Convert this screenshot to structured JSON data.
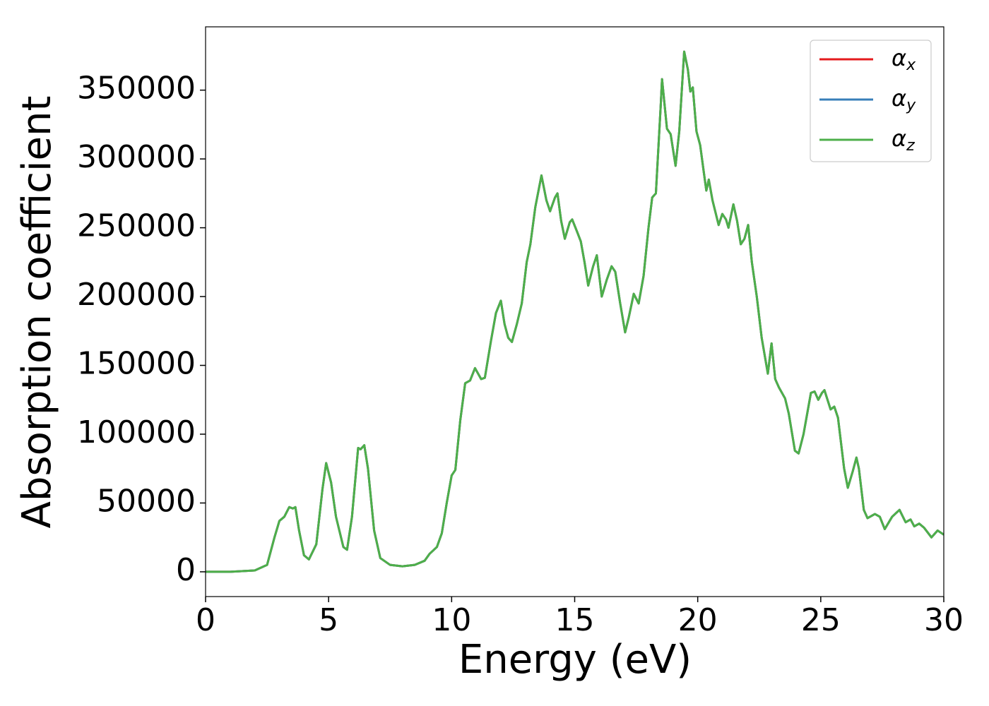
{
  "chart_data": {
    "type": "line",
    "xlabel": "Energy (eV)",
    "ylabel": "Absorption coefficient",
    "x": [
      0,
      1,
      2,
      2.5,
      2.8,
      3,
      3.2,
      3.4,
      3.55,
      3.65,
      3.8,
      4,
      4.2,
      4.5,
      4.75,
      4.9,
      5.1,
      5.3,
      5.6,
      5.75,
      5.95,
      6.2,
      6.3,
      6.45,
      6.6,
      6.85,
      7.1,
      7.5,
      8,
      8.5,
      8.9,
      9.1,
      9.4,
      9.6,
      9.8,
      10,
      10.15,
      10.35,
      10.55,
      10.75,
      10.95,
      11.2,
      11.35,
      11.6,
      11.8,
      12,
      12.15,
      12.3,
      12.45,
      12.65,
      12.85,
      13.05,
      13.2,
      13.4,
      13.65,
      13.85,
      14,
      14.2,
      14.3,
      14.45,
      14.6,
      14.8,
      14.9,
      15.1,
      15.25,
      15.4,
      15.55,
      15.75,
      15.9,
      16.1,
      16.3,
      16.5,
      16.65,
      16.85,
      17.05,
      17.2,
      17.4,
      17.6,
      17.8,
      18,
      18.15,
      18.3,
      18.5,
      18.55,
      18.75,
      18.9,
      19.1,
      19.25,
      19.45,
      19.6,
      19.7,
      19.8,
      19.95,
      20.1,
      20.25,
      20.35,
      20.45,
      20.6,
      20.85,
      21,
      21.15,
      21.25,
      21.45,
      21.6,
      21.75,
      21.9,
      22.05,
      22.2,
      22.4,
      22.6,
      22.85,
      23,
      23.15,
      23.3,
      23.55,
      23.7,
      23.95,
      24.1,
      24.3,
      24.6,
      24.75,
      24.9,
      25.05,
      25.15,
      25.4,
      25.55,
      25.7,
      25.95,
      26.1,
      26.3,
      26.45,
      26.55,
      26.75,
      26.9,
      27.2,
      27.4,
      27.6,
      27.9,
      28.2,
      28.45,
      28.65,
      28.8,
      29,
      29.2,
      29.5,
      29.75,
      30
    ],
    "series": [
      {
        "name": "αx",
        "color": "#e41a1c",
        "values": [
          0,
          0,
          1000,
          5000,
          25000,
          37000,
          40000,
          47000,
          46000,
          47000,
          30000,
          12000,
          9000,
          20000,
          60000,
          79000,
          65000,
          40000,
          18000,
          16000,
          40000,
          90000,
          89000,
          92000,
          75000,
          30000,
          10000,
          5000,
          4000,
          5000,
          8000,
          13000,
          18000,
          28000,
          50000,
          70000,
          74000,
          110000,
          137000,
          139000,
          148000,
          140000,
          141000,
          168000,
          188000,
          197000,
          180000,
          170000,
          167000,
          180000,
          195000,
          225000,
          238000,
          265000,
          288000,
          270000,
          262000,
          272000,
          275000,
          255000,
          242000,
          254000,
          256000,
          247000,
          240000,
          225000,
          208000,
          222000,
          230000,
          200000,
          212000,
          222000,
          218000,
          195000,
          174000,
          185000,
          202000,
          195000,
          215000,
          250000,
          272000,
          275000,
          340000,
          358000,
          322000,
          318000,
          295000,
          320000,
          378000,
          365000,
          349000,
          352000,
          320000,
          310000,
          290000,
          277000,
          285000,
          270000,
          252000,
          260000,
          256000,
          250000,
          267000,
          255000,
          238000,
          242000,
          252000,
          225000,
          200000,
          170000,
          144000,
          166000,
          140000,
          134000,
          126000,
          115000,
          88000,
          86000,
          100000,
          130000,
          131000,
          125000,
          130000,
          132000,
          118000,
          120000,
          112000,
          75000,
          61000,
          73000,
          83000,
          75000,
          45000,
          39000,
          42000,
          40000,
          31000,
          40000,
          45000,
          36000,
          38000,
          33000,
          35000,
          32000,
          25000,
          30000,
          27000
        ]
      },
      {
        "name": "αy",
        "color": "#377eb8",
        "values": [
          0,
          0,
          1000,
          5000,
          25000,
          37000,
          40000,
          47000,
          46000,
          47000,
          30000,
          12000,
          9000,
          20000,
          60000,
          79000,
          65000,
          40000,
          18000,
          16000,
          40000,
          90000,
          89000,
          92000,
          75000,
          30000,
          10000,
          5000,
          4000,
          5000,
          8000,
          13000,
          18000,
          28000,
          50000,
          70000,
          74000,
          110000,
          137000,
          139000,
          148000,
          140000,
          141000,
          168000,
          188000,
          197000,
          180000,
          170000,
          167000,
          180000,
          195000,
          225000,
          238000,
          265000,
          288000,
          270000,
          262000,
          272000,
          275000,
          255000,
          242000,
          254000,
          256000,
          247000,
          240000,
          225000,
          208000,
          222000,
          230000,
          200000,
          212000,
          222000,
          218000,
          195000,
          174000,
          185000,
          202000,
          195000,
          215000,
          250000,
          272000,
          275000,
          340000,
          358000,
          322000,
          318000,
          295000,
          320000,
          378000,
          365000,
          349000,
          352000,
          320000,
          310000,
          290000,
          277000,
          285000,
          270000,
          252000,
          260000,
          256000,
          250000,
          267000,
          255000,
          238000,
          242000,
          252000,
          225000,
          200000,
          170000,
          144000,
          166000,
          140000,
          134000,
          126000,
          115000,
          88000,
          86000,
          100000,
          130000,
          131000,
          125000,
          130000,
          132000,
          118000,
          120000,
          112000,
          75000,
          61000,
          73000,
          83000,
          75000,
          45000,
          39000,
          42000,
          40000,
          31000,
          40000,
          45000,
          36000,
          38000,
          33000,
          35000,
          32000,
          25000,
          30000,
          27000
        ]
      },
      {
        "name": "αz",
        "color": "#4daf4a",
        "values": [
          0,
          0,
          1000,
          5000,
          25000,
          37000,
          40000,
          47000,
          46000,
          47000,
          30000,
          12000,
          9000,
          20000,
          60000,
          79000,
          65000,
          40000,
          18000,
          16000,
          40000,
          90000,
          89000,
          92000,
          75000,
          30000,
          10000,
          5000,
          4000,
          5000,
          8000,
          13000,
          18000,
          28000,
          50000,
          70000,
          74000,
          110000,
          137000,
          139000,
          148000,
          140000,
          141000,
          168000,
          188000,
          197000,
          180000,
          170000,
          167000,
          180000,
          195000,
          225000,
          238000,
          265000,
          288000,
          270000,
          262000,
          272000,
          275000,
          255000,
          242000,
          254000,
          256000,
          247000,
          240000,
          225000,
          208000,
          222000,
          230000,
          200000,
          212000,
          222000,
          218000,
          195000,
          174000,
          185000,
          202000,
          195000,
          215000,
          250000,
          272000,
          275000,
          340000,
          358000,
          322000,
          318000,
          295000,
          320000,
          378000,
          365000,
          349000,
          352000,
          320000,
          310000,
          290000,
          277000,
          285000,
          270000,
          252000,
          260000,
          256000,
          250000,
          267000,
          255000,
          238000,
          242000,
          252000,
          225000,
          200000,
          170000,
          144000,
          166000,
          140000,
          134000,
          126000,
          115000,
          88000,
          86000,
          100000,
          130000,
          131000,
          125000,
          130000,
          132000,
          118000,
          120000,
          112000,
          75000,
          61000,
          73000,
          83000,
          75000,
          45000,
          39000,
          42000,
          40000,
          31000,
          40000,
          45000,
          36000,
          38000,
          33000,
          35000,
          32000,
          25000,
          30000,
          27000
        ]
      }
    ],
    "xlim": [
      0,
      30
    ],
    "xticks": [
      0,
      5,
      10,
      15,
      20,
      25,
      30
    ],
    "ylim": [
      -18000,
      396000
    ],
    "yticks": [
      0,
      50000,
      100000,
      150000,
      200000,
      250000,
      300000,
      350000
    ],
    "grid": false,
    "legend": "upper right"
  }
}
